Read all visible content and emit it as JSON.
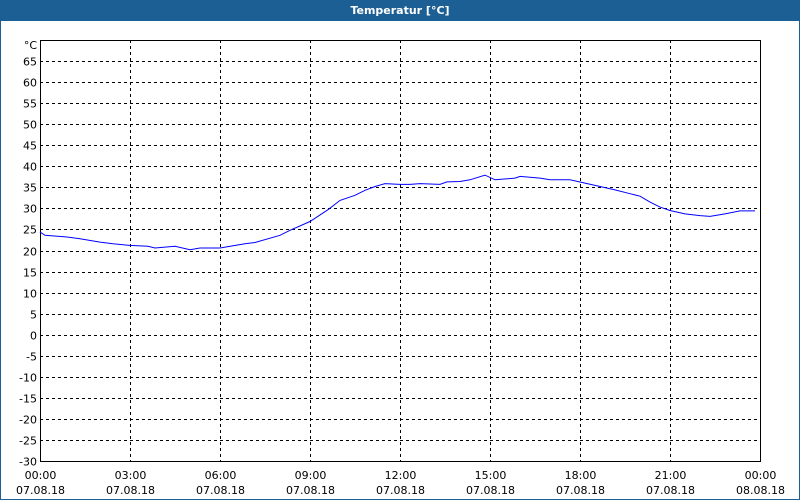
{
  "title": "Temperatur [°C]",
  "colors": {
    "titlebar": "#1c5f94",
    "line": "#0000ff"
  },
  "chart_data": {
    "type": "line",
    "title": "Temperatur [°C]",
    "ylabel": "°C",
    "ylim": [
      -30,
      70
    ],
    "yticks": [
      65,
      60,
      55,
      50,
      45,
      40,
      35,
      30,
      25,
      20,
      15,
      10,
      5,
      0,
      -5,
      -10,
      -15,
      -20,
      -25,
      -30
    ],
    "xticks": [
      {
        "time": "00:00",
        "date": "07.08.18"
      },
      {
        "time": "03:00",
        "date": "07.08.18"
      },
      {
        "time": "06:00",
        "date": "07.08.18"
      },
      {
        "time": "09:00",
        "date": "07.08.18"
      },
      {
        "time": "12:00",
        "date": "07.08.18"
      },
      {
        "time": "15:00",
        "date": "07.08.18"
      },
      {
        "time": "18:00",
        "date": "07.08.18"
      },
      {
        "time": "21:00",
        "date": "07.08.18"
      },
      {
        "time": "00:00",
        "date": "08.08.18"
      }
    ],
    "grid": true,
    "series": [
      {
        "x": [
          "00:00",
          "00:10",
          "00:54",
          "01:20",
          "02:00",
          "02:26",
          "03:00",
          "03:36",
          "03:50",
          "04:30",
          "05:00",
          "05:20",
          "06:00",
          "06:50",
          "07:10",
          "08:00",
          "08:20",
          "09:00",
          "09:36",
          "10:00",
          "10:30",
          "10:50",
          "11:10",
          "11:30",
          "12:00",
          "12:20",
          "12:40",
          "13:20",
          "13:34",
          "14:00",
          "14:20",
          "14:50",
          "15:10",
          "15:50",
          "16:00",
          "16:40",
          "17:00",
          "17:40",
          "18:10",
          "18:40",
          "19:10",
          "19:40",
          "20:00",
          "20:20",
          "20:40",
          "21:00",
          "21:30",
          "22:00",
          "22:20",
          "22:50",
          "23:20",
          "23:50"
        ],
        "y": [
          24.4,
          23.6,
          23.2,
          22.8,
          22.0,
          21.6,
          21.2,
          21.0,
          20.6,
          21.0,
          20.2,
          20.6,
          20.6,
          21.6,
          21.9,
          23.6,
          24.8,
          26.9,
          29.7,
          31.9,
          33.1,
          34.3,
          35.2,
          35.9,
          35.7,
          35.7,
          35.9,
          35.7,
          36.3,
          36.4,
          36.8,
          37.9,
          36.8,
          37.2,
          37.6,
          37.2,
          36.8,
          36.8,
          36.0,
          35.2,
          34.4,
          33.5,
          32.9,
          31.5,
          30.3,
          29.5,
          28.7,
          28.3,
          28.1,
          28.7,
          29.4,
          29.4
        ]
      }
    ]
  }
}
